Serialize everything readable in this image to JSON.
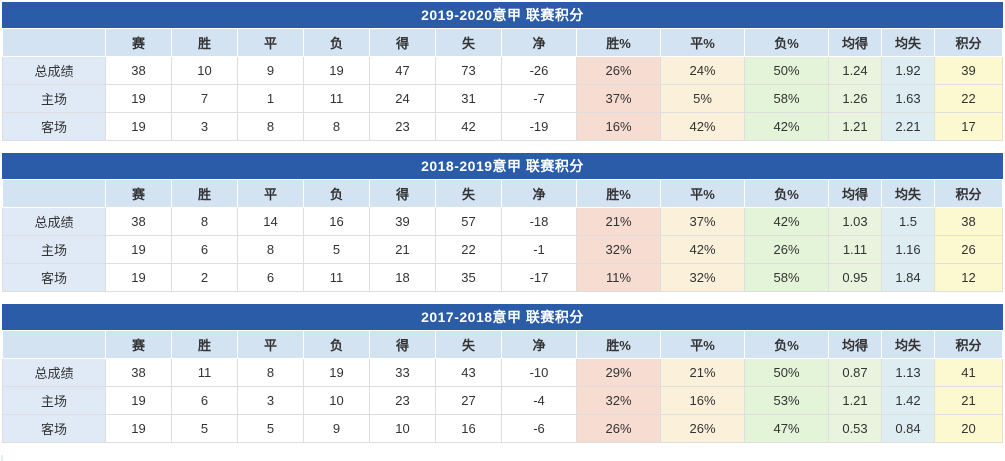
{
  "columns": [
    "",
    "赛",
    "胜",
    "平",
    "负",
    "得",
    "失",
    "净",
    "胜%",
    "平%",
    "负%",
    "均得",
    "均失",
    "积分"
  ],
  "colors": {
    "title_bg": "#2a5ca8",
    "title_text": "#ffffff",
    "header_bg": "#d4e3f2",
    "row_label_bg": "#dfeaf6",
    "cell_bg": "#ffffff",
    "win_pct_bg": "#f6dcd1",
    "draw_pct_bg": "#fbf0da",
    "loss_pct_bg": "#e3f4d8",
    "avg_goals_for_bg": "#eaf3de",
    "avg_goals_against_bg": "#ddedf1",
    "points_bg": "#fcf8d0",
    "grid_border": "#dedede",
    "text": "#333333"
  },
  "chart_data": [
    {
      "type": "table",
      "title": "2019-2020意甲 联赛积分",
      "columns": [
        "",
        "赛",
        "胜",
        "平",
        "负",
        "得",
        "失",
        "净",
        "胜%",
        "平%",
        "负%",
        "均得",
        "均失",
        "积分"
      ],
      "rows": [
        {
          "label": "总成绩",
          "values": [
            "38",
            "10",
            "9",
            "19",
            "47",
            "73",
            "-26",
            "26%",
            "24%",
            "50%",
            "1.24",
            "1.92",
            "39"
          ]
        },
        {
          "label": "主场",
          "values": [
            "19",
            "7",
            "1",
            "11",
            "24",
            "31",
            "-7",
            "37%",
            "5%",
            "58%",
            "1.26",
            "1.63",
            "22"
          ]
        },
        {
          "label": "客场",
          "values": [
            "19",
            "3",
            "8",
            "8",
            "23",
            "42",
            "-19",
            "16%",
            "42%",
            "42%",
            "1.21",
            "2.21",
            "17"
          ]
        }
      ]
    },
    {
      "type": "table",
      "title": "2018-2019意甲 联赛积分",
      "columns": [
        "",
        "赛",
        "胜",
        "平",
        "负",
        "得",
        "失",
        "净",
        "胜%",
        "平%",
        "负%",
        "均得",
        "均失",
        "积分"
      ],
      "rows": [
        {
          "label": "总成绩",
          "values": [
            "38",
            "8",
            "14",
            "16",
            "39",
            "57",
            "-18",
            "21%",
            "37%",
            "42%",
            "1.03",
            "1.5",
            "38"
          ]
        },
        {
          "label": "主场",
          "values": [
            "19",
            "6",
            "8",
            "5",
            "21",
            "22",
            "-1",
            "32%",
            "42%",
            "26%",
            "1.11",
            "1.16",
            "26"
          ]
        },
        {
          "label": "客场",
          "values": [
            "19",
            "2",
            "6",
            "11",
            "18",
            "35",
            "-17",
            "11%",
            "32%",
            "58%",
            "0.95",
            "1.84",
            "12"
          ]
        }
      ]
    },
    {
      "type": "table",
      "title": "2017-2018意甲 联赛积分",
      "columns": [
        "",
        "赛",
        "胜",
        "平",
        "负",
        "得",
        "失",
        "净",
        "胜%",
        "平%",
        "负%",
        "均得",
        "均失",
        "积分"
      ],
      "rows": [
        {
          "label": "总成绩",
          "values": [
            "38",
            "11",
            "8",
            "19",
            "33",
            "43",
            "-10",
            "29%",
            "21%",
            "50%",
            "0.87",
            "1.13",
            "41"
          ]
        },
        {
          "label": "主场",
          "values": [
            "19",
            "6",
            "3",
            "10",
            "23",
            "27",
            "-4",
            "32%",
            "16%",
            "53%",
            "1.21",
            "1.42",
            "21"
          ]
        },
        {
          "label": "客场",
          "values": [
            "19",
            "5",
            "5",
            "9",
            "10",
            "16",
            "-6",
            "26%",
            "26%",
            "47%",
            "0.53",
            "0.84",
            "20"
          ]
        }
      ]
    }
  ]
}
